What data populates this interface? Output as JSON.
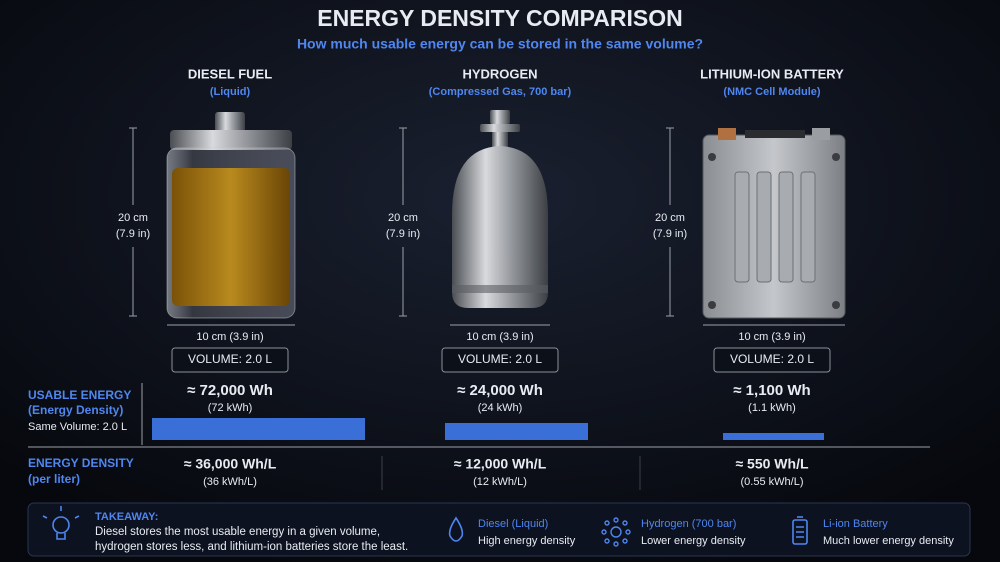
{
  "header": {
    "title": "ENERGY DENSITY COMPARISON",
    "subtitle": "How much usable energy can be stored in the same volume?"
  },
  "columns": [
    {
      "name": "DIESEL FUEL",
      "subtitle": "(Liquid)",
      "height_label": [
        "20 cm",
        "(7.9 in)"
      ],
      "width_label": "10 cm (3.9 in)",
      "volume": "VOLUME: 2.0 L",
      "energy": "≈ 72,000 Wh",
      "energy_sub": "(72 kWh)",
      "density": "≈ 36,000 Wh/L",
      "density_sub": "(36 kWh/L)"
    },
    {
      "name": "HYDROGEN",
      "subtitle": "(Compressed Gas, 700 bar)",
      "height_label": [
        "20 cm",
        "(7.9 in)"
      ],
      "width_label": "10 cm (3.9 in)",
      "volume": "VOLUME: 2.0 L",
      "energy": "≈ 24,000 Wh",
      "energy_sub": "(24 kWh)",
      "density": "≈ 12,000 Wh/L",
      "density_sub": "(12 kWh/L)"
    },
    {
      "name": "LITHIUM-ION BATTERY",
      "subtitle": "(NMC Cell Module)",
      "height_label": [
        "20 cm",
        "(7.9 in)"
      ],
      "width_label": "10 cm (3.9 in)",
      "volume": "VOLUME: 2.0 L",
      "energy": "≈ 1,100 Wh",
      "energy_sub": "(1.1 kWh)",
      "density": "≈ 550 Wh/L",
      "density_sub": "(0.55 kWh/L)"
    }
  ],
  "rows": {
    "usable_energy": [
      "USABLE ENERGY",
      "(Energy Density)"
    ],
    "same_volume": "Same Volume: 2.0 L",
    "energy_density": [
      "ENERGY DENSITY",
      "(per liter)"
    ]
  },
  "takeaway": {
    "title": "TAKEAWAY:",
    "text": [
      "Diesel stores the most usable energy in a given volume,",
      "hydrogen stores less, and lithium-ion batteries store the least."
    ]
  },
  "legend": [
    {
      "name": "Diesel (Liquid)",
      "desc": "High energy density"
    },
    {
      "name": "Hydrogen (700 bar)",
      "desc": "Lower energy density"
    },
    {
      "name": "Li-ion Battery",
      "desc": "Much lower energy density"
    }
  ]
}
